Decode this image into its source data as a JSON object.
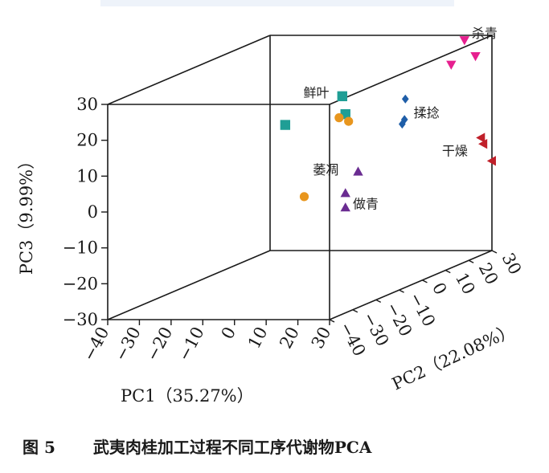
{
  "caption": {
    "number": "图 5",
    "title": "武夷肉桂加工过程不同工序代谢物PCA"
  },
  "colors": {
    "fresh_leaf": "#1f9e95",
    "withering": "#e8961e",
    "zuoqing": "#6a2c91",
    "shaqing": "#e6208f",
    "rolling": "#1f5ea8",
    "drying": "#c0202a",
    "axes": "#1a1a1a"
  },
  "chart_data": {
    "type": "scatter",
    "projection": "3d",
    "xlabel": "PC1（35.27%）",
    "ylabel": "PC2（22.08%）",
    "zlabel": "PC3（9.99%）",
    "xlim": [
      -40,
      30
    ],
    "ylim": [
      -40,
      30
    ],
    "zlim": [
      -30,
      30
    ],
    "x_ticks": [
      "−40",
      "−30",
      "−20",
      "−10",
      "0",
      "10",
      "20",
      "30"
    ],
    "y_ticks": [
      "−40",
      "−30",
      "−20",
      "−10",
      "0",
      "10",
      "20",
      "30"
    ],
    "z_ticks": [
      "30",
      "20",
      "10",
      "0",
      "−10",
      "−20",
      "−30"
    ],
    "grid": false,
    "series": [
      {
        "name": "鲜叶",
        "marker": "square",
        "color": "#1f9e95",
        "points": [
          {
            "x": 4,
            "y": 1,
            "z": 21
          },
          {
            "x": 5,
            "y": 1,
            "z": 16
          },
          {
            "x": -14,
            "y": 1,
            "z": 13
          }
        ]
      },
      {
        "name": "萎凋",
        "marker": "circle",
        "color": "#e8961e",
        "points": [
          {
            "x": 3,
            "y": 1,
            "z": 15
          },
          {
            "x": 6,
            "y": 1,
            "z": 14
          },
          {
            "x": -8,
            "y": 1,
            "z": -7
          }
        ]
      },
      {
        "name": "做青",
        "marker": "triangle-up",
        "color": "#6a2c91",
        "points": [
          {
            "x": 9,
            "y": 1,
            "z": 0
          },
          {
            "x": 5,
            "y": 1,
            "z": -6
          },
          {
            "x": 5,
            "y": 1,
            "z": -10
          }
        ]
      },
      {
        "name": "杀青",
        "marker": "triangle-down",
        "color": "#e6208f",
        "points": [
          {
            "x": 25,
            "y": 25,
            "z": 30
          },
          {
            "x": 23,
            "y": 22,
            "z": 24
          },
          {
            "x": 27,
            "y": 27,
            "z": 25
          }
        ]
      },
      {
        "name": "揉捻",
        "marker": "diamond",
        "color": "#1f5ea8",
        "points": [
          {
            "x": 10,
            "y": 20,
            "z": 15
          },
          {
            "x": 9,
            "y": 21,
            "z": 9
          },
          {
            "x": 9,
            "y": 20,
            "z": 8
          }
        ]
      },
      {
        "name": "干燥",
        "marker": "triangle-left",
        "color": "#c0202a",
        "points": [
          {
            "x": 28,
            "y": 28,
            "z": 2
          },
          {
            "x": 28,
            "y": 29,
            "z": 0
          },
          {
            "x": 30,
            "y": 30,
            "z": -5
          }
        ]
      }
    ]
  }
}
